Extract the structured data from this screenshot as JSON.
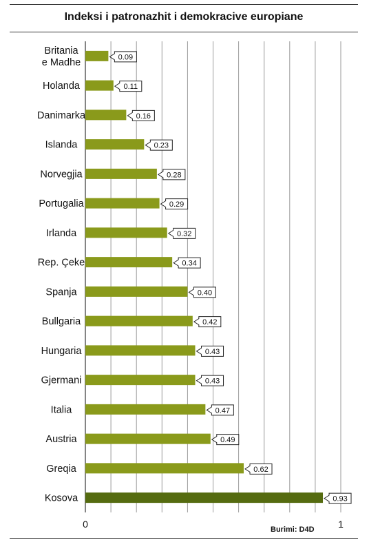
{
  "chart_data": {
    "type": "bar",
    "orientation": "horizontal",
    "title": "Indeksi i patronazhit i demokracive europiane",
    "categories": [
      "Britania\ne Madhe",
      "Holanda",
      "Danimarka",
      "Islanda",
      "Norvegjia",
      "Portugalia",
      "Irlanda",
      "Rep. Çeke",
      "Spanja",
      "Bullgaria",
      "Hungaria",
      "Gjermani",
      "Italia",
      "Austria",
      "Greqia",
      "Kosova"
    ],
    "values": [
      0.09,
      0.11,
      0.16,
      0.23,
      0.28,
      0.29,
      0.32,
      0.34,
      0.4,
      0.42,
      0.43,
      0.43,
      0.47,
      0.49,
      0.62,
      0.93
    ],
    "value_labels": [
      "0.09",
      "0.11",
      "0.16",
      "0.23",
      "0.28",
      "0.29",
      "0.32",
      "0.34",
      "0.40",
      "0.42",
      "0.43",
      "0.43",
      "0.47",
      "0.49",
      "0.62",
      "0.93"
    ],
    "highlight_category": "Kosova",
    "xlim": [
      0,
      1
    ],
    "x_ticks": [
      "0",
      "1"
    ],
    "grid": true,
    "legend": "none",
    "colors": {
      "bar": "#8a9a1b",
      "highlight_bar": "#556b10",
      "grid": "#9a9a9a",
      "axis": "#333333"
    }
  },
  "source": "Burimi: D4D"
}
